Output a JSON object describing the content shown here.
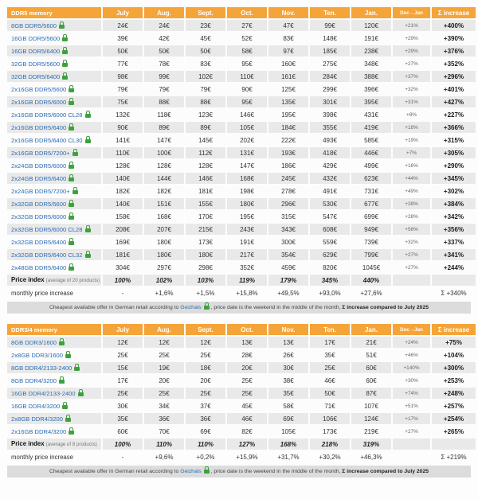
{
  "colors": {
    "header_orange": "#F5A43A",
    "row_gray": "#E9E9E9",
    "note_gray": "#DCDCDC",
    "link_blue": "#2A6DB5",
    "lock_green": "#3DA23D"
  },
  "chart_data": [
    {
      "type": "table",
      "title": "DDR5 memory",
      "columns": [
        "July",
        "Aug.",
        "Sept.",
        "Oct.",
        "Nov.",
        "Ten.",
        "Jan.",
        "Dec→Jan",
        "Σ increase"
      ],
      "rows": [
        {
          "name": "8GB DDR5/5600",
          "prices": [
            "24€",
            "24€",
            "23€",
            "27€",
            "47€",
            "99€",
            "120€"
          ],
          "dec_jan": "+21%",
          "total": "+400%"
        },
        {
          "name": "16GB DDR5/5600",
          "prices": [
            "39€",
            "42€",
            "45€",
            "52€",
            "83€",
            "148€",
            "191€"
          ],
          "dec_jan": "+29%",
          "total": "+390%"
        },
        {
          "name": "16GB DDR5/6400",
          "prices": [
            "50€",
            "50€",
            "50€",
            "58€",
            "97€",
            "185€",
            "238€"
          ],
          "dec_jan": "+29%",
          "total": "+376%"
        },
        {
          "name": "32GB DDR5/5600",
          "prices": [
            "77€",
            "78€",
            "83€",
            "95€",
            "160€",
            "275€",
            "348€"
          ],
          "dec_jan": "+27%",
          "total": "+352%"
        },
        {
          "name": "32GB DDR5/6400",
          "prices": [
            "98€",
            "99€",
            "102€",
            "110€",
            "161€",
            "284€",
            "388€"
          ],
          "dec_jan": "+37%",
          "total": "+296%"
        },
        {
          "name": "2x16GB DDR5/5600",
          "prices": [
            "79€",
            "79€",
            "79€",
            "90€",
            "125€",
            "299€",
            "396€"
          ],
          "dec_jan": "+32%",
          "total": "+401%"
        },
        {
          "name": "2x16GB DDR5/6000",
          "prices": [
            "75€",
            "88€",
            "88€",
            "95€",
            "135€",
            "301€",
            "395€"
          ],
          "dec_jan": "+31%",
          "total": "+427%"
        },
        {
          "name": "2x16GB DDR5/6000 CL28",
          "prices": [
            "132€",
            "118€",
            "123€",
            "146€",
            "195€",
            "398€",
            "431€"
          ],
          "dec_jan": "+8%",
          "total": "+227%"
        },
        {
          "name": "2x16GB DDR5/6400",
          "prices": [
            "90€",
            "89€",
            "89€",
            "105€",
            "184€",
            "355€",
            "419€"
          ],
          "dec_jan": "+18%",
          "total": "+366%"
        },
        {
          "name": "2x16GB DDR5/6400 CL30",
          "prices": [
            "141€",
            "147€",
            "145€",
            "202€",
            "222€",
            "493€",
            "585€"
          ],
          "dec_jan": "+19%",
          "total": "+315%"
        },
        {
          "name": "2x16GB DDR5/7200+",
          "prices": [
            "110€",
            "100€",
            "112€",
            "131€",
            "193€",
            "418€",
            "446€"
          ],
          "dec_jan": "+7%",
          "total": "+305%"
        },
        {
          "name": "2x24GB DDR5/6000",
          "prices": [
            "128€",
            "128€",
            "128€",
            "147€",
            "186€",
            "429€",
            "499€"
          ],
          "dec_jan": "+16%",
          "total": "+290%"
        },
        {
          "name": "2x24GB DDR5/6400",
          "prices": [
            "140€",
            "144€",
            "146€",
            "168€",
            "245€",
            "432€",
            "623€"
          ],
          "dec_jan": "+44%",
          "total": "+345%"
        },
        {
          "name": "2x24GB DDR5/7200+",
          "prices": [
            "182€",
            "182€",
            "181€",
            "198€",
            "278€",
            "491€",
            "731€"
          ],
          "dec_jan": "+49%",
          "total": "+302%"
        },
        {
          "name": "2x32GB DDR5/5600",
          "prices": [
            "140€",
            "151€",
            "155€",
            "180€",
            "296€",
            "530€",
            "677€"
          ],
          "dec_jan": "+28%",
          "total": "+384%"
        },
        {
          "name": "2x32GB DDR5/6000",
          "prices": [
            "158€",
            "168€",
            "170€",
            "195€",
            "315€",
            "547€",
            "699€"
          ],
          "dec_jan": "+28%",
          "total": "+342%"
        },
        {
          "name": "2x32GB DDR5/6000 CL28",
          "prices": [
            "208€",
            "207€",
            "215€",
            "243€",
            "343€",
            "608€",
            "949€"
          ],
          "dec_jan": "+56%",
          "total": "+356%"
        },
        {
          "name": "2x32GB DDR5/6400",
          "prices": [
            "169€",
            "180€",
            "173€",
            "191€",
            "300€",
            "559€",
            "739€"
          ],
          "dec_jan": "+32%",
          "total": "+337%"
        },
        {
          "name": "2x32GB DDR5/6400 CL32",
          "prices": [
            "181€",
            "180€",
            "180€",
            "217€",
            "354€",
            "629€",
            "799€"
          ],
          "dec_jan": "+27%",
          "total": "+341%"
        },
        {
          "name": "2x48GB DDR5/6400",
          "prices": [
            "304€",
            "297€",
            "298€",
            "352€",
            "459€",
            "820€",
            "1045€"
          ],
          "dec_jan": "+27%",
          "total": "+244%"
        }
      ],
      "price_index": {
        "label": "Price index",
        "label_note": "(average of 20 products)",
        "values": [
          "100%",
          "102%",
          "103%",
          "119%",
          "179%",
          "345%",
          "440%"
        ]
      },
      "monthly": {
        "label": "monthly price increase",
        "values": [
          "-",
          "+1,6%",
          "+1,5%",
          "+15,8%",
          "+49,5%",
          "+93,0%",
          "+27,6%"
        ],
        "total": "Σ +340%"
      },
      "note": {
        "pre": "Cheapest available offer in German retail according to ",
        "link": "Geizhals",
        "post": " , price date is the weekend in the middle of the month, ",
        "bold": "Σ increase compared to July 2025"
      }
    },
    {
      "type": "table",
      "title": "DDR3/4 memory",
      "columns": [
        "July",
        "Aug.",
        "Sept.",
        "Oct.",
        "Nov.",
        "Ten.",
        "Jan.",
        "Dec→Jan",
        "Σ increase"
      ],
      "rows": [
        {
          "name": "8GB DDR3/1600",
          "prices": [
            "12€",
            "12€",
            "12€",
            "13€",
            "13€",
            "17€",
            "21€"
          ],
          "dec_jan": "+24%",
          "total": "+75%"
        },
        {
          "name": "2x8GB DDR3/1600",
          "prices": [
            "25€",
            "25€",
            "25€",
            "28€",
            "26€",
            "35€",
            "51€"
          ],
          "dec_jan": "+46%",
          "total": "+104%"
        },
        {
          "name": "8GB DDR4/2133-2400",
          "prices": [
            "15€",
            "19€",
            "18€",
            "20€",
            "30€",
            "25€",
            "60€"
          ],
          "dec_jan": "+140%",
          "total": "+300%"
        },
        {
          "name": "8GB DDR4/3200",
          "prices": [
            "17€",
            "20€",
            "20€",
            "25€",
            "38€",
            "46€",
            "60€"
          ],
          "dec_jan": "+30%",
          "total": "+253%"
        },
        {
          "name": "16GB DDR4/2133-2400",
          "prices": [
            "25€",
            "25€",
            "25€",
            "25€",
            "35€",
            "50€",
            "87€"
          ],
          "dec_jan": "+74%",
          "total": "+248%"
        },
        {
          "name": "16GB DDR4/3200",
          "prices": [
            "30€",
            "34€",
            "37€",
            "45€",
            "58€",
            "71€",
            "107€"
          ],
          "dec_jan": "+51%",
          "total": "+257%"
        },
        {
          "name": "2x8GB DDR4/3200",
          "prices": [
            "35€",
            "36€",
            "36€",
            "46€",
            "69€",
            "106€",
            "124€"
          ],
          "dec_jan": "+17%",
          "total": "+254%"
        },
        {
          "name": "2x16GB DDR4/3200",
          "prices": [
            "60€",
            "70€",
            "69€",
            "82€",
            "105€",
            "173€",
            "219€"
          ],
          "dec_jan": "+27%",
          "total": "+265%"
        }
      ],
      "price_index": {
        "label": "Price index",
        "label_note": "(average of 8 products)",
        "values": [
          "100%",
          "110%",
          "110%",
          "127%",
          "168%",
          "218%",
          "319%"
        ]
      },
      "monthly": {
        "label": "monthly price increase",
        "values": [
          "-",
          "+9,6%",
          "+0,2%",
          "+15,9%",
          "+31,7%",
          "+30,2%",
          "+46,3%"
        ],
        "total": "Σ +219%"
      },
      "note": {
        "pre": "Cheapest available offer in German retail according to ",
        "link": "Geizhals",
        "post": " , price date is the weekend in the middle of the month, ",
        "bold": "Σ increase compared to July 2025"
      }
    }
  ]
}
